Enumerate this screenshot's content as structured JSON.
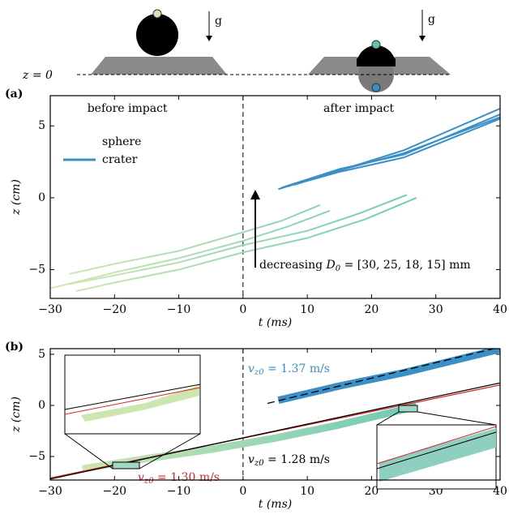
{
  "schematic": {
    "origin_label": "z = 0",
    "gravity_left": "g",
    "gravity_right": "g"
  },
  "chart_data": [
    {
      "type": "line",
      "panel_label": "(a)",
      "xlim": [
        -30,
        40
      ],
      "ylim": [
        -7,
        7.1
      ],
      "xticks": [
        {
          "value": -30,
          "label": "−30"
        },
        {
          "value": -20,
          "label": "−20"
        },
        {
          "value": -10,
          "label": "−10"
        },
        0,
        10,
        20,
        30,
        40
      ],
      "yticks": [
        {
          "value": -5,
          "label": "−5"
        },
        0,
        5
      ],
      "xlabel": "t (ms)",
      "ylabel": "z (cm)",
      "annotations": [
        "before impact",
        "after impact"
      ],
      "arrow_label": {
        "text": "decreasing ",
        "math": "D",
        "sub": "0",
        "rest": " = [30, 25, 18, 15] mm"
      },
      "series": [
        {
          "name": "sphere",
          "colors": [
            "#d5e8b4",
            "#6ecab6"
          ],
          "lines": [
            {
              "x": [
                -27,
                -20,
                -10,
                0,
                6,
                12
              ],
              "values": [
                -5.3,
                -4.6,
                -3.7,
                -2.4,
                -1.6,
                -0.5
              ]
            },
            {
              "x": [
                -30,
                -20,
                -10,
                0,
                7,
                13.5
              ],
              "values": [
                -6.3,
                -5.2,
                -4.2,
                -3.0,
                -2.0,
                -0.9
              ]
            },
            {
              "x": [
                -27,
                -20,
                -10,
                0,
                10,
                18,
                25.5
              ],
              "values": [
                -6.0,
                -5.4,
                -4.5,
                -3.3,
                -2.3,
                -1.1,
                0.2
              ]
            },
            {
              "x": [
                -26,
                -20,
                -10,
                0,
                10,
                19,
                27
              ],
              "values": [
                -6.5,
                -5.9,
                -5.0,
                -3.8,
                -2.8,
                -1.5,
                0.0
              ]
            }
          ]
        },
        {
          "name": "crater",
          "colors": [
            "#3a8fc5",
            "#3a8fc5"
          ],
          "lines": [
            {
              "x": [
                5.5,
                15,
                25,
                40
              ],
              "values": [
                0.6,
                1.9,
                3.3,
                6.2
              ]
            },
            {
              "x": [
                6,
                15,
                25,
                40
              ],
              "values": [
                0.7,
                2.0,
                3.0,
                5.8
              ]
            },
            {
              "x": [
                7,
                15,
                25,
                40
              ],
              "values": [
                0.8,
                1.8,
                2.8,
                5.5
              ]
            },
            {
              "x": [
                8,
                15,
                25,
                40
              ],
              "values": [
                0.9,
                1.9,
                3.1,
                5.6
              ]
            }
          ]
        }
      ]
    },
    {
      "type": "line",
      "panel_label": "(b)",
      "xlim": [
        -30,
        40
      ],
      "ylim": [
        -7.3,
        5.55
      ],
      "xticks": [
        {
          "value": -30,
          "label": "−30"
        },
        {
          "value": -20,
          "label": "−20"
        },
        {
          "value": -10,
          "label": "−10"
        },
        0,
        10,
        20,
        30,
        40
      ],
      "yticks": [
        {
          "value": -5,
          "label": "−5"
        },
        0,
        5
      ],
      "xlabel": "t (ms)",
      "ylabel": "z (cm)",
      "fit_labels": [
        {
          "math": "v",
          "sub": "z0",
          "rest": " = 1.37 m/s",
          "color": "#3a8fc5"
        },
        {
          "math": "v",
          "sub": "z0",
          "rest": " = 1.28 m/s",
          "color": "#000000"
        },
        {
          "math": "v",
          "sub": "z0",
          "rest": " = 1.30 m/s",
          "color": "#d62728"
        }
      ],
      "series": [
        {
          "style": "band",
          "colors": [
            "#d5e8b4",
            "#6ecab6"
          ],
          "x": [
            -25,
            -15,
            -5,
            5,
            15,
            27
          ],
          "values": [
            -6.2,
            -5.2,
            -4.3,
            -3.2,
            -1.9,
            -0.1
          ]
        },
        {
          "style": "band",
          "colors": [
            "#3a8fc5",
            "#3a8fc5"
          ],
          "x": [
            5.5,
            15,
            25,
            40
          ],
          "values": [
            0.5,
            1.9,
            3.2,
            5.5
          ]
        },
        {
          "style": "solid",
          "colors": [
            "#d62728",
            "#d62728"
          ],
          "x": [
            -30,
            40
          ],
          "values": [
            -7.1,
            2.0
          ]
        },
        {
          "style": "solid",
          "colors": [
            "#000000",
            "#000000"
          ],
          "x": [
            -30,
            40
          ],
          "values": [
            -7.2,
            2.2
          ]
        },
        {
          "style": "dashed",
          "colors": [
            "#000000",
            "#000000"
          ],
          "x": [
            3.8,
            40
          ],
          "values": [
            0.2,
            5.7
          ]
        }
      ]
    }
  ]
}
